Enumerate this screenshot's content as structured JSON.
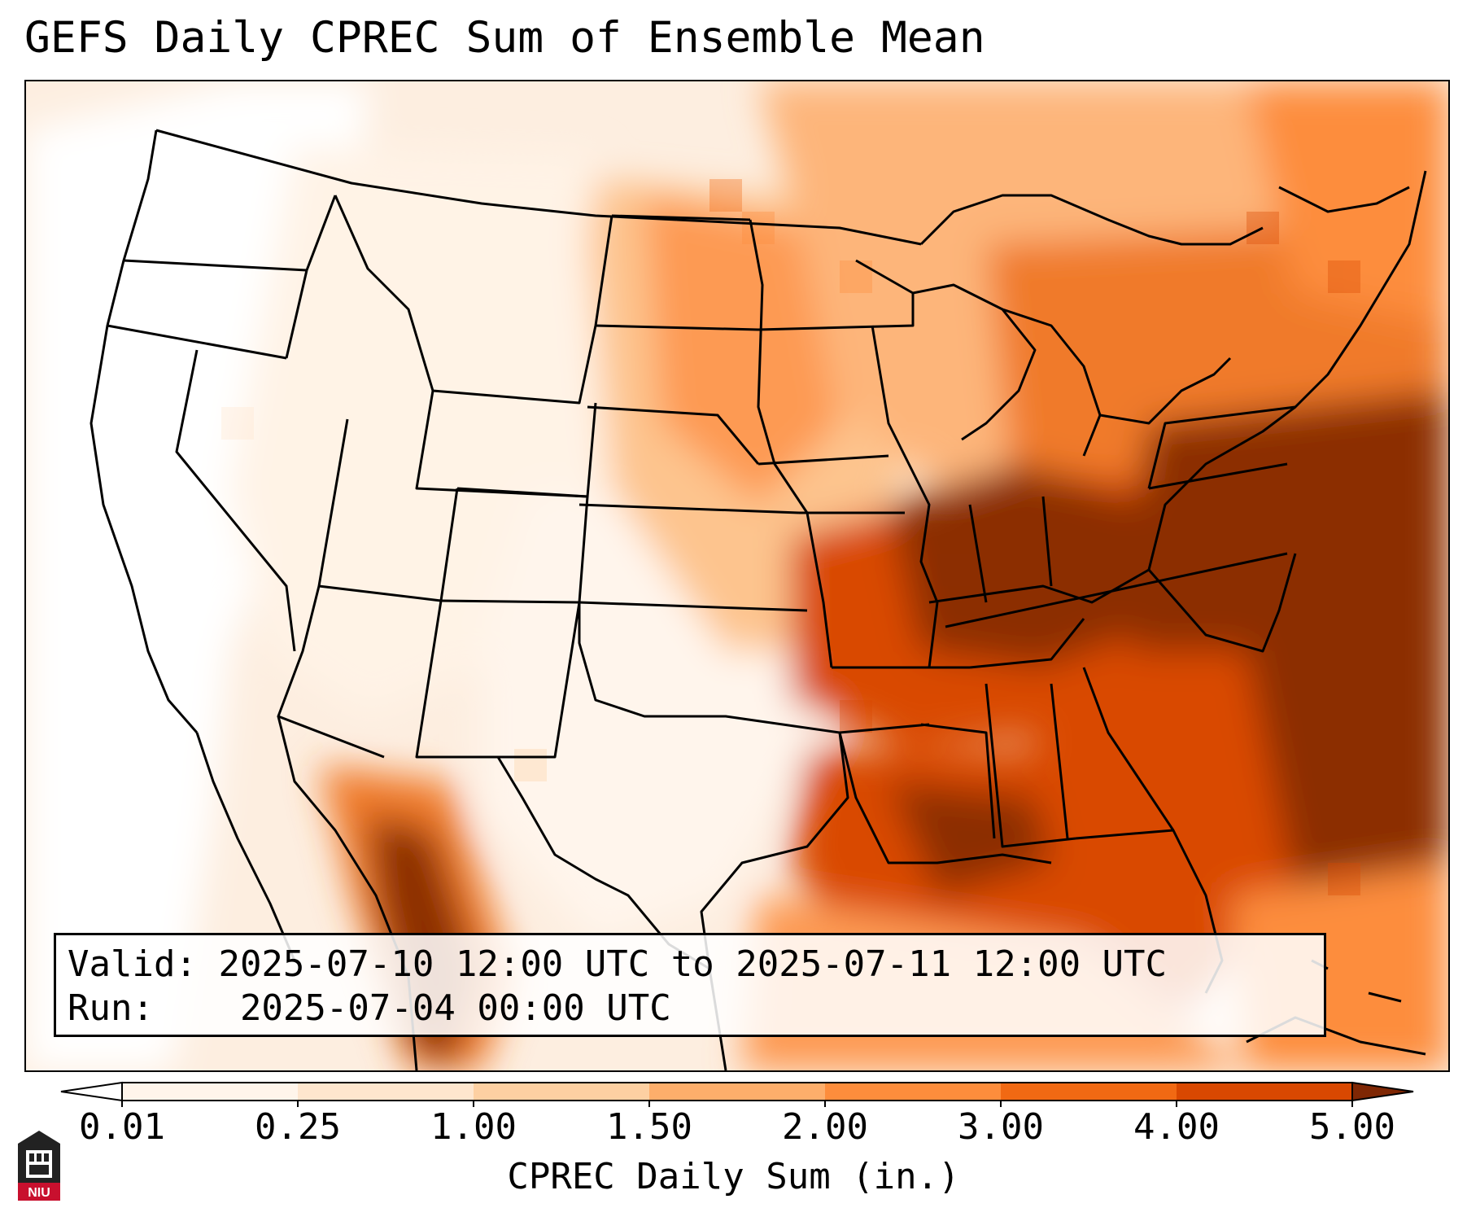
{
  "title": "GEFS Daily CPREC Sum of Ensemble Mean",
  "info": {
    "valid_label": "Valid:",
    "valid_value": "2025-07-10 12:00 UTC to 2025-07-11 12:00 UTC",
    "run_label": "Run:",
    "run_value": "2025-07-04 00:00 UTC"
  },
  "colorbar": {
    "label": "CPREC Daily Sum (in.)",
    "ticks": [
      "0.01",
      "0.25",
      "1.00",
      "1.50",
      "2.00",
      "3.00",
      "4.00",
      "5.00"
    ],
    "colors": [
      "#fff5eb",
      "#fee6ce",
      "#fdd0a2",
      "#fdae6b",
      "#fd8d3c",
      "#f16913",
      "#d94801",
      "#8c2d04"
    ],
    "under_color": "#ffffff",
    "over_color": "#7f2704"
  },
  "logo": {
    "text": "NIU",
    "color": "#c8102e"
  }
}
